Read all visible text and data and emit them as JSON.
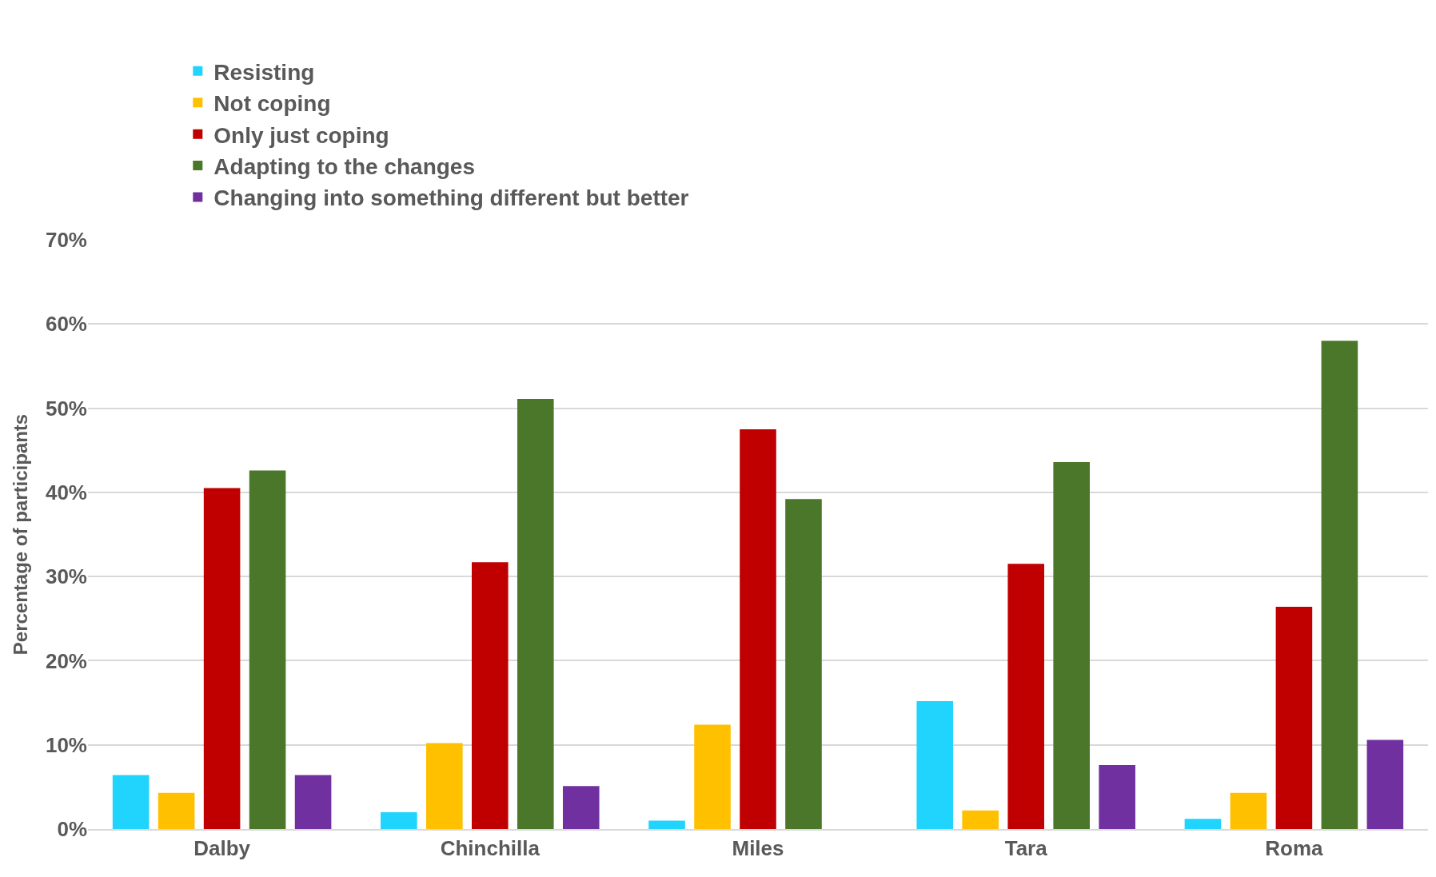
{
  "chart_data": {
    "type": "bar",
    "ylabel": "Percentage of participants",
    "categories": [
      "Dalby",
      "Chinchilla",
      "Miles",
      "Tara",
      "Roma"
    ],
    "series": [
      {
        "name": "Resisting",
        "color": "#21d4fd",
        "values": [
          6.4,
          2.0,
          1.0,
          15.2,
          1.2
        ]
      },
      {
        "name": "Not coping",
        "color": "#ffc000",
        "values": [
          4.3,
          10.2,
          12.4,
          2.2,
          4.3
        ]
      },
      {
        "name": "Only just coping",
        "color": "#c00000",
        "values": [
          40.5,
          31.7,
          47.5,
          31.5,
          26.4
        ]
      },
      {
        "name": "Adapting to the changes",
        "color": "#4a7729",
        "values": [
          42.6,
          51.1,
          39.2,
          43.6,
          58.0
        ]
      },
      {
        "name": "Changing into something different but better",
        "color": "#7030a0",
        "values": [
          6.4,
          5.1,
          0,
          7.6,
          10.6
        ]
      }
    ],
    "ylim": [
      0,
      70
    ],
    "yticks": [
      {
        "value": 0,
        "label": "0%"
      },
      {
        "value": 10,
        "label": "10%"
      },
      {
        "value": 20,
        "label": "20%"
      },
      {
        "value": 30,
        "label": "30%"
      },
      {
        "value": 40,
        "label": "40%"
      },
      {
        "value": 50,
        "label": "50%"
      },
      {
        "value": 60,
        "label": "60%"
      },
      {
        "value": 70,
        "label": "70%"
      }
    ],
    "grid": "y",
    "legend": "top left"
  }
}
